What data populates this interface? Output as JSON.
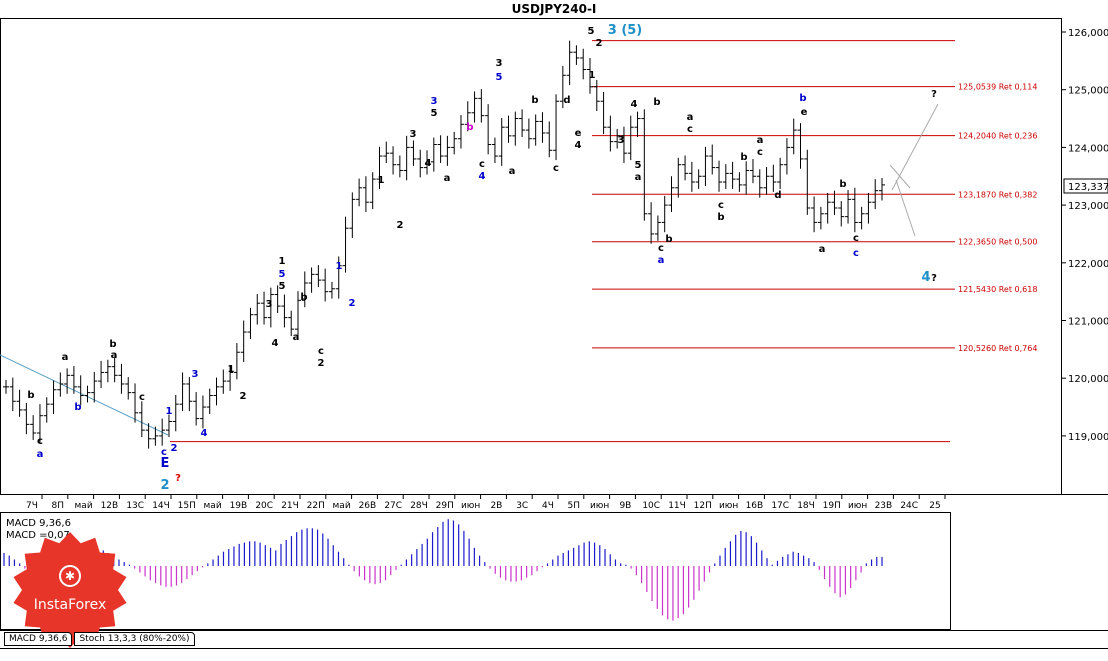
{
  "window": {
    "title": "USDJPY240-I"
  },
  "price_pane": {
    "current_price": "123,337",
    "levels": [
      {
        "price": 125.85,
        "label": ""
      },
      {
        "price": 125.0539,
        "label": "125,0539 Ret 0,114"
      },
      {
        "price": 124.204,
        "label": "124,2040 Ret 0,236"
      },
      {
        "price": 123.187,
        "label": "123,1870 Ret 0,382"
      },
      {
        "price": 122.365,
        "label": "122,3650 Ret 0,500"
      },
      {
        "price": 121.543,
        "label": "121,5430 Ret 0,618"
      },
      {
        "price": 120.526,
        "label": "120,5260 Ret 0,764"
      },
      {
        "price": 118.9,
        "label": ""
      }
    ]
  },
  "chart_data": {
    "type": "candlestick",
    "symbol": "USDJPY240-I",
    "y_ticks": [
      "126,000",
      "125,000",
      "124,000",
      "123,000",
      "122,000",
      "121,000",
      "120,000",
      "119,000"
    ],
    "y_tick_values": [
      126,
      125,
      124,
      123,
      122,
      121,
      120,
      119
    ],
    "ylim": [
      117.95,
      126.25
    ],
    "x_ticks": [
      "7Ч",
      "8П",
      "май",
      "12В",
      "13С",
      "14Ч",
      "15П",
      "май",
      "19В",
      "20С",
      "21Ч",
      "22П",
      "май",
      "26В",
      "27С",
      "28Ч",
      "29П",
      "июн",
      "2В",
      "3С",
      "4Ч",
      "5П",
      "июн",
      "9В",
      "10С",
      "11Ч",
      "12П",
      "июн",
      "16В",
      "17С",
      "18Ч",
      "19П",
      "июн",
      "23В",
      "24С",
      "25"
    ],
    "closes": [
      119.85,
      119.6,
      119.45,
      119.2,
      119.05,
      119.35,
      119.55,
      119.8,
      119.9,
      120.05,
      119.85,
      119.7,
      119.75,
      119.95,
      120.1,
      120.2,
      120.05,
      119.9,
      119.75,
      119.4,
      119.1,
      118.95,
      119.0,
      119.1,
      119.25,
      119.55,
      119.9,
      119.6,
      119.3,
      119.5,
      119.7,
      119.85,
      119.95,
      120.1,
      120.45,
      120.8,
      121.1,
      121.3,
      121.05,
      121.45,
      121.25,
      121.05,
      120.85,
      121.35,
      121.65,
      121.8,
      121.7,
      121.5,
      121.55,
      121.95,
      122.6,
      123.1,
      123.3,
      123.05,
      123.45,
      123.85,
      123.9,
      123.7,
      123.6,
      124.0,
      123.8,
      123.65,
      123.75,
      124.05,
      123.85,
      124.0,
      124.15,
      124.4,
      124.6,
      124.85,
      124.55,
      124.05,
      123.85,
      124.35,
      124.2,
      124.5,
      124.3,
      124.15,
      124.45,
      124.25,
      123.95,
      124.8,
      125.25,
      125.65,
      125.55,
      125.35,
      125.05,
      124.8,
      124.35,
      124.1,
      124.2,
      123.9,
      124.35,
      124.5,
      122.85,
      122.5,
      122.7,
      123.0,
      123.3,
      123.7,
      123.55,
      123.4,
      123.5,
      123.85,
      123.65,
      123.4,
      123.55,
      123.45,
      123.35,
      123.6,
      123.5,
      123.3,
      123.5,
      123.4,
      123.7,
      124.0,
      124.3,
      123.8,
      122.95,
      122.7,
      122.85,
      123.05,
      122.95,
      122.8,
      123.1,
      122.7,
      122.85,
      123.05,
      123.25,
      123.35
    ],
    "wave_labels": [
      {
        "text": "a",
        "color": "#000000"
      },
      {
        "text": "c",
        "color": "#000000"
      },
      {
        "text": "a",
        "color": "#0000cc"
      },
      {
        "text": "b",
        "color": "#000000"
      },
      {
        "text": "b",
        "color": "#000000"
      },
      {
        "text": "a",
        "color": "#000000"
      },
      {
        "text": "b",
        "color": "#0000cc"
      },
      {
        "text": "c",
        "color": "#000000"
      },
      {
        "text": "1",
        "color": "#0000cc"
      },
      {
        "text": "2",
        "color": "#0000cc"
      },
      {
        "text": "c",
        "color": "#0000cc"
      },
      {
        "text": "E",
        "color": "#0000cc"
      },
      {
        "text": "2",
        "color": "#1e90c8"
      },
      {
        "text": "?",
        "color": "#dd0000"
      },
      {
        "text": "3",
        "color": "#0000cc"
      },
      {
        "text": "4",
        "color": "#0000cc"
      },
      {
        "text": "1",
        "color": "#000000"
      },
      {
        "text": "2",
        "color": "#000000"
      },
      {
        "text": "3",
        "color": "#000000"
      },
      {
        "text": "4",
        "color": "#000000"
      },
      {
        "text": "5",
        "color": "#000000"
      },
      {
        "text": "1",
        "color": "#000000"
      },
      {
        "text": "5",
        "color": "#0000cc"
      },
      {
        "text": "a",
        "color": "#000000"
      },
      {
        "text": "b",
        "color": "#000000"
      },
      {
        "text": "c",
        "color": "#000000"
      },
      {
        "text": "2",
        "color": "#000000"
      },
      {
        "text": "1",
        "color": "#0000cc"
      },
      {
        "text": "2",
        "color": "#0000cc"
      },
      {
        "text": "1",
        "color": "#000000"
      },
      {
        "text": "2",
        "color": "#000000"
      },
      {
        "text": "3",
        "color": "#000000"
      },
      {
        "text": "4",
        "color": "#000000"
      },
      {
        "text": "3",
        "color": "#0000cc"
      },
      {
        "text": "5",
        "color": "#000000"
      },
      {
        "text": "a",
        "color": "#000000"
      },
      {
        "text": "b",
        "color": "#cc00cc"
      },
      {
        "text": "c",
        "color": "#000000"
      },
      {
        "text": "4",
        "color": "#0000cc"
      },
      {
        "text": "3",
        "color": "#000000"
      },
      {
        "text": "5",
        "color": "#0000cc"
      },
      {
        "text": "a",
        "color": "#000000"
      },
      {
        "text": "b",
        "color": "#000000"
      },
      {
        "text": "c",
        "color": "#000000"
      },
      {
        "text": "d",
        "color": "#000000"
      },
      {
        "text": "e",
        "color": "#000000"
      },
      {
        "text": "4",
        "color": "#000000"
      },
      {
        "text": "5",
        "color": "#000000"
      },
      {
        "text": "2",
        "color": "#000000"
      },
      {
        "text": "3 (5)",
        "color": "#1e90c8"
      },
      {
        "text": "1",
        "color": "#000000"
      },
      {
        "text": "3",
        "color": "#000000"
      },
      {
        "text": "4",
        "color": "#000000"
      },
      {
        "text": "5",
        "color": "#000000"
      },
      {
        "text": "a",
        "color": "#000000"
      },
      {
        "text": "b",
        "color": "#000000"
      },
      {
        "text": "c",
        "color": "#000000"
      },
      {
        "text": "b",
        "color": "#000000"
      },
      {
        "text": "a",
        "color": "#0000cc"
      },
      {
        "text": "a",
        "color": "#000000"
      },
      {
        "text": "c",
        "color": "#000000"
      },
      {
        "text": "c",
        "color": "#000000"
      },
      {
        "text": "b",
        "color": "#000000"
      },
      {
        "text": "a",
        "color": "#000000"
      },
      {
        "text": "c",
        "color": "#000000"
      },
      {
        "text": "b",
        "color": "#000000"
      },
      {
        "text": "d",
        "color": "#000000"
      },
      {
        "text": "b",
        "color": "#0000cc"
      },
      {
        "text": "e",
        "color": "#000000"
      },
      {
        "text": "a",
        "color": "#000000"
      },
      {
        "text": "b",
        "color": "#000000"
      },
      {
        "text": "c",
        "color": "#000000"
      },
      {
        "text": "c",
        "color": "#0000cc"
      },
      {
        "text": "?",
        "color": "#000000"
      },
      {
        "text": "4",
        "color": "#1e90c8"
      },
      {
        "text": "?",
        "color": "#000000"
      }
    ]
  },
  "macd_pane": {
    "label_line1": "MACD 9,36,6",
    "label_line2": "MACD =0,07",
    "values": [
      0.1,
      0.08,
      0.05,
      0.02,
      -0.02,
      -0.05,
      -0.08,
      -0.1,
      -0.11,
      -0.1,
      -0.08,
      -0.05,
      -0.02,
      0.02,
      0.05,
      0.08,
      0.1,
      0.12,
      0.13,
      0.12,
      0.1,
      0.08,
      0.05,
      0.03,
      0.01,
      -0.02,
      -0.05,
      -0.08,
      -0.11,
      -0.13,
      -0.15,
      -0.16,
      -0.16,
      -0.15,
      -0.13,
      -0.1,
      -0.07,
      -0.04,
      -0.01,
      0.02,
      0.05,
      0.08,
      0.11,
      0.13,
      0.15,
      0.17,
      0.18,
      0.19,
      0.19,
      0.18,
      0.16,
      0.14,
      0.12,
      0.17,
      0.2,
      0.23,
      0.26,
      0.28,
      0.29,
      0.29,
      0.28,
      0.25,
      0.21,
      0.16,
      0.11,
      0.06,
      0.01,
      -0.04,
      -0.08,
      -0.11,
      -0.13,
      -0.14,
      -0.13,
      -0.11,
      -0.07,
      -0.03,
      0.01,
      0.05,
      0.09,
      0.13,
      0.17,
      0.21,
      0.26,
      0.3,
      0.34,
      0.36,
      0.35,
      0.32,
      0.27,
      0.21,
      0.14,
      0.08,
      0.03,
      -0.02,
      -0.06,
      -0.09,
      -0.11,
      -0.12,
      -0.12,
      -0.11,
      -0.09,
      -0.07,
      -0.04,
      -0.01,
      0.02,
      0.05,
      0.08,
      0.1,
      0.12,
      0.14,
      0.16,
      0.18,
      0.19,
      0.18,
      0.16,
      0.13,
      0.09,
      0.05,
      0.02,
      0.01,
      -0.02,
      -0.07,
      -0.13,
      -0.2,
      -0.27,
      -0.33,
      -0.38,
      -0.41,
      -0.42,
      -0.4,
      -0.37,
      -0.32,
      -0.26,
      -0.19,
      -0.12,
      -0.05,
      0.02,
      0.08,
      0.14,
      0.19,
      0.24,
      0.27,
      0.26,
      0.23,
      0.18,
      0.12,
      0.06,
      0.01,
      0.04,
      0.07,
      0.09,
      0.11,
      0.1,
      0.08,
      0.06,
      0.03,
      -0.03,
      -0.1,
      -0.16,
      -0.21,
      -0.24,
      -0.22,
      -0.17,
      -0.11,
      -0.05,
      0.02,
      0.05,
      0.07,
      0.07
    ]
  },
  "tabs": [
    {
      "label": "MACD 9,36,6"
    },
    {
      "label": "Stoch 13,3,3 (80%-20%)"
    }
  ],
  "logo": {
    "text": "InstaForex"
  },
  "colors": {
    "level_line": "#cc0000",
    "macd_positive": "#1a1acc",
    "macd_negative": "#cc33cc",
    "logo_red": "#e8352a",
    "trendline": "#5aa0c8"
  }
}
